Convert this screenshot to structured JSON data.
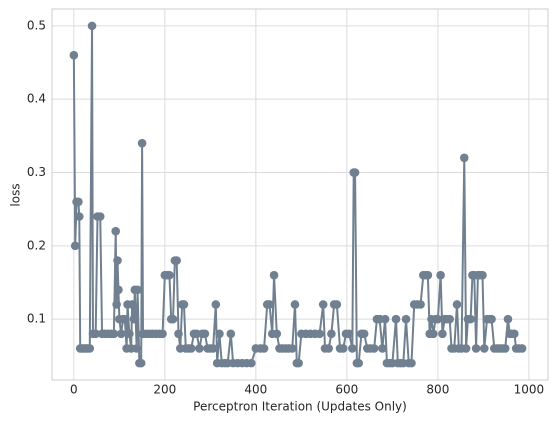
{
  "chart_data": {
    "type": "line",
    "xlabel": "Perceptron Iteration (Updates Only)",
    "ylabel": "loss",
    "xlim": [
      -48,
      1042
    ],
    "ylim": [
      0.017,
      0.523
    ],
    "xticks": [
      0,
      200,
      400,
      600,
      800,
      1000
    ],
    "yticks": [
      0.1,
      0.2,
      0.3,
      0.4,
      0.5
    ],
    "grid": true,
    "series": [
      {
        "color": "#708090",
        "x": [
          0,
          3,
          6,
          10,
          12,
          14,
          18,
          22,
          26,
          30,
          35,
          40,
          42,
          48,
          52,
          58,
          62,
          68,
          75,
          82,
          88,
          92,
          94,
          96,
          98,
          100,
          104,
          108,
          112,
          116,
          118,
          122,
          126,
          128,
          132,
          134,
          138,
          140,
          144,
          148,
          150,
          152,
          158,
          165,
          172,
          180,
          188,
          195,
          200,
          205,
          210,
          214,
          218,
          222,
          226,
          230,
          234,
          238,
          242,
          246,
          252,
          258,
          264,
          270,
          276,
          282,
          288,
          294,
          300,
          306,
          312,
          315,
          320,
          325,
          332,
          338,
          345,
          350,
          360,
          370,
          380,
          390,
          400,
          410,
          418,
          425,
          430,
          436,
          440,
          446,
          452,
          458,
          465,
          472,
          480,
          486,
          490,
          494,
          500,
          510,
          520,
          530,
          540,
          548,
          552,
          560,
          566,
          572,
          578,
          585,
          592,
          598,
          605,
          612,
          615,
          618,
          622,
          626,
          632,
          638,
          645,
          652,
          660,
          666,
          672,
          678,
          684,
          688,
          694,
          700,
          708,
          712,
          718,
          724,
          730,
          736,
          742,
          748,
          755,
          762,
          768,
          772,
          778,
          782,
          786,
          790,
          795,
          800,
          806,
          810,
          815,
          820,
          826,
          830,
          836,
          842,
          846,
          852,
          858,
          862,
          866,
          872,
          876,
          880,
          884,
          888,
          892,
          898,
          902,
          908,
          914,
          918,
          924,
          930,
          936,
          942,
          948,
          954,
          958,
          962,
          968,
          972,
          978,
          985
        ],
        "values": [
          0.46,
          0.2,
          0.26,
          0.26,
          0.24,
          0.06,
          0.06,
          0.06,
          0.06,
          0.06,
          0.06,
          0.5,
          0.08,
          0.08,
          0.24,
          0.24,
          0.08,
          0.08,
          0.08,
          0.08,
          0.08,
          0.22,
          0.12,
          0.18,
          0.14,
          0.1,
          0.08,
          0.1,
          0.1,
          0.06,
          0.12,
          0.08,
          0.06,
          0.12,
          0.1,
          0.14,
          0.06,
          0.14,
          0.04,
          0.04,
          0.34,
          0.08,
          0.08,
          0.08,
          0.08,
          0.08,
          0.08,
          0.08,
          0.16,
          0.16,
          0.16,
          0.1,
          0.1,
          0.18,
          0.18,
          0.08,
          0.06,
          0.12,
          0.12,
          0.06,
          0.06,
          0.06,
          0.08,
          0.08,
          0.06,
          0.08,
          0.08,
          0.06,
          0.06,
          0.06,
          0.12,
          0.04,
          0.08,
          0.04,
          0.04,
          0.04,
          0.08,
          0.04,
          0.04,
          0.04,
          0.04,
          0.04,
          0.06,
          0.06,
          0.06,
          0.12,
          0.12,
          0.08,
          0.16,
          0.08,
          0.06,
          0.06,
          0.06,
          0.06,
          0.06,
          0.12,
          0.04,
          0.04,
          0.08,
          0.08,
          0.08,
          0.08,
          0.08,
          0.12,
          0.06,
          0.06,
          0.08,
          0.12,
          0.12,
          0.06,
          0.06,
          0.08,
          0.08,
          0.06,
          0.3,
          0.3,
          0.04,
          0.04,
          0.08,
          0.08,
          0.06,
          0.06,
          0.06,
          0.1,
          0.1,
          0.06,
          0.1,
          0.04,
          0.04,
          0.04,
          0.1,
          0.04,
          0.04,
          0.04,
          0.1,
          0.04,
          0.04,
          0.12,
          0.12,
          0.12,
          0.16,
          0.16,
          0.16,
          0.08,
          0.1,
          0.08,
          0.1,
          0.1,
          0.16,
          0.08,
          0.1,
          0.1,
          0.1,
          0.06,
          0.06,
          0.12,
          0.06,
          0.06,
          0.32,
          0.06,
          0.1,
          0.1,
          0.16,
          0.16,
          0.06,
          0.16,
          0.16,
          0.16,
          0.06,
          0.1,
          0.1,
          0.1,
          0.06,
          0.06,
          0.06,
          0.06,
          0.06,
          0.1,
          0.08,
          0.08,
          0.08,
          0.06,
          0.06,
          0.06
        ]
      }
    ]
  }
}
